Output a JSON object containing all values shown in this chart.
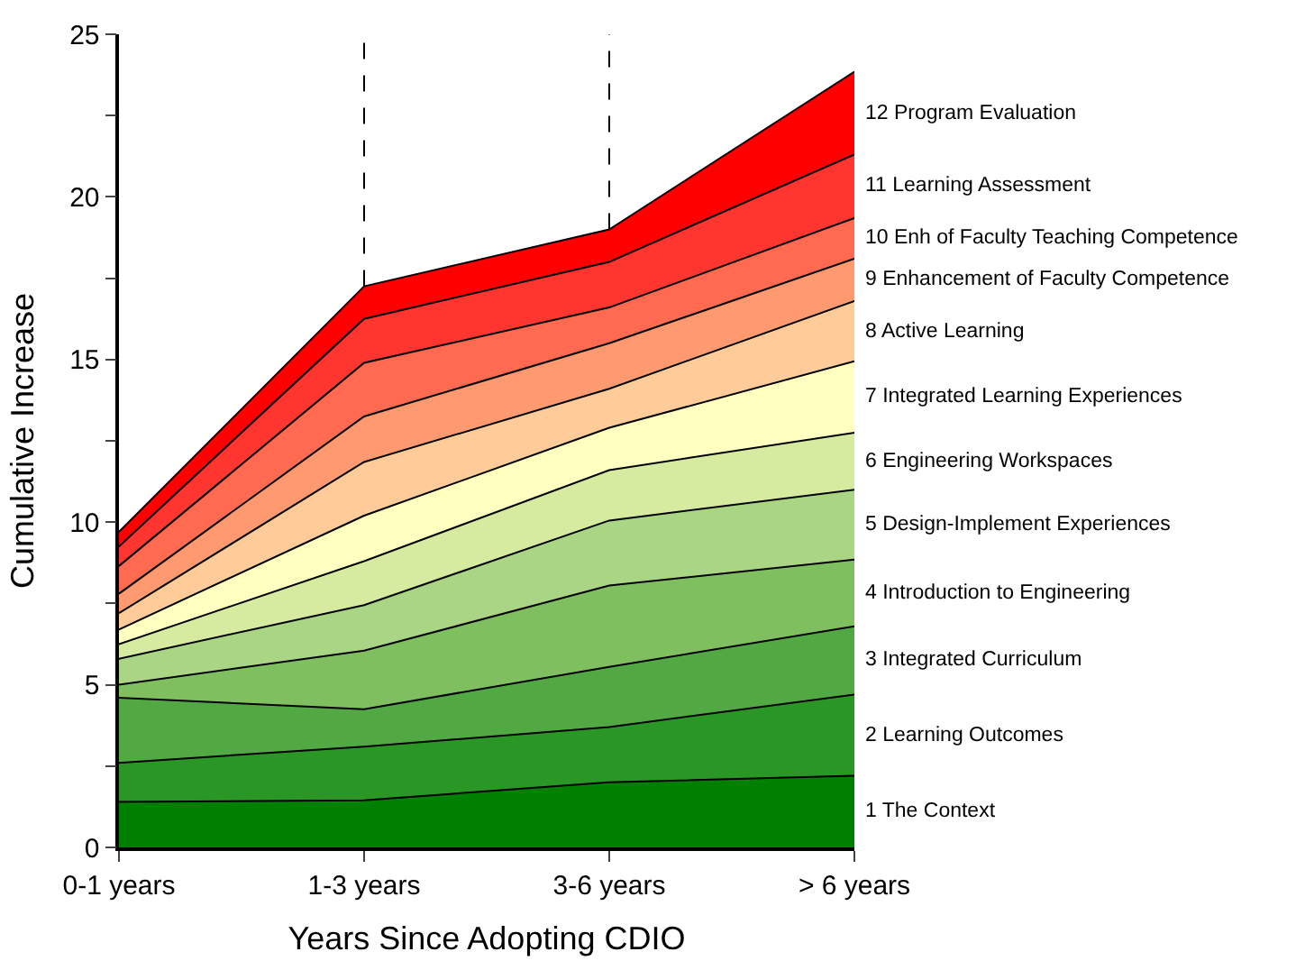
{
  "chart_data": {
    "type": "area",
    "stacked": true,
    "xlabel": "Years Since Adopting CDIO",
    "ylabel": "Cumulative Increase",
    "categories": [
      "0-1 years",
      "1-3 years",
      "3-6 years",
      "> 6 years"
    ],
    "ylim": [
      0,
      25
    ],
    "yticks": [
      0,
      {
        "value": 2.5,
        "label": null
      },
      5,
      {
        "value": 7.5,
        "label": null
      },
      10,
      {
        "value": 12.5,
        "label": null
      },
      15,
      {
        "value": 17.5,
        "label": null
      },
      20,
      {
        "value": 22.5,
        "label": null
      },
      25
    ],
    "legend": false,
    "ref_lines": [
      {
        "axis": "x",
        "value": "1-3 years",
        "line_style": "dashed",
        "color": "#000000"
      },
      {
        "axis": "x",
        "value": "3-6 years",
        "line_style": "dashed",
        "color": "#000000"
      }
    ],
    "series": [
      {
        "name": "1 The Context",
        "color": "#008000",
        "values": [
          1.4,
          1.45,
          2.0,
          2.2
        ]
      },
      {
        "name": "2 Learning Outcomes",
        "color": "#2a9625",
        "values": [
          1.2,
          1.65,
          1.7,
          2.5
        ]
      },
      {
        "name": "3 Integrated Curriculum",
        "color": "#52a842",
        "values": [
          2.0,
          1.15,
          1.85,
          2.1
        ]
      },
      {
        "name": "4 Introduction to Engineering",
        "color": "#7fbf5f",
        "values": [
          0.4,
          1.8,
          2.5,
          2.05
        ]
      },
      {
        "name": "5 Design-Implement Experiences",
        "color": "#aad584",
        "values": [
          0.8,
          1.4,
          2.0,
          2.15
        ]
      },
      {
        "name": "6 Engineering Workspaces",
        "color": "#d6eaa0",
        "values": [
          0.45,
          1.35,
          1.55,
          1.75
        ]
      },
      {
        "name": "7 Integrated Learning Experiences",
        "color": "#ffffc0",
        "values": [
          0.45,
          1.4,
          1.3,
          2.2
        ]
      },
      {
        "name": "8 Active Learning",
        "color": "#ffcc99",
        "values": [
          0.5,
          1.65,
          1.2,
          1.85
        ]
      },
      {
        "name": "9 Enhancement of Faculty Competence",
        "color": "#ff9970",
        "values": [
          0.6,
          1.4,
          1.4,
          1.3
        ]
      },
      {
        "name": "10 Enh of Faculty Teaching Competence",
        "color": "#ff6a50",
        "values": [
          0.85,
          1.65,
          1.1,
          1.25
        ]
      },
      {
        "name": "11 Learning Assessment",
        "color": "#ff3530",
        "values": [
          0.6,
          1.35,
          1.4,
          1.95
        ]
      },
      {
        "name": "12 Program Evaluation",
        "color": "#ff0000",
        "values": [
          0.45,
          1.0,
          1.0,
          2.55
        ]
      }
    ]
  }
}
